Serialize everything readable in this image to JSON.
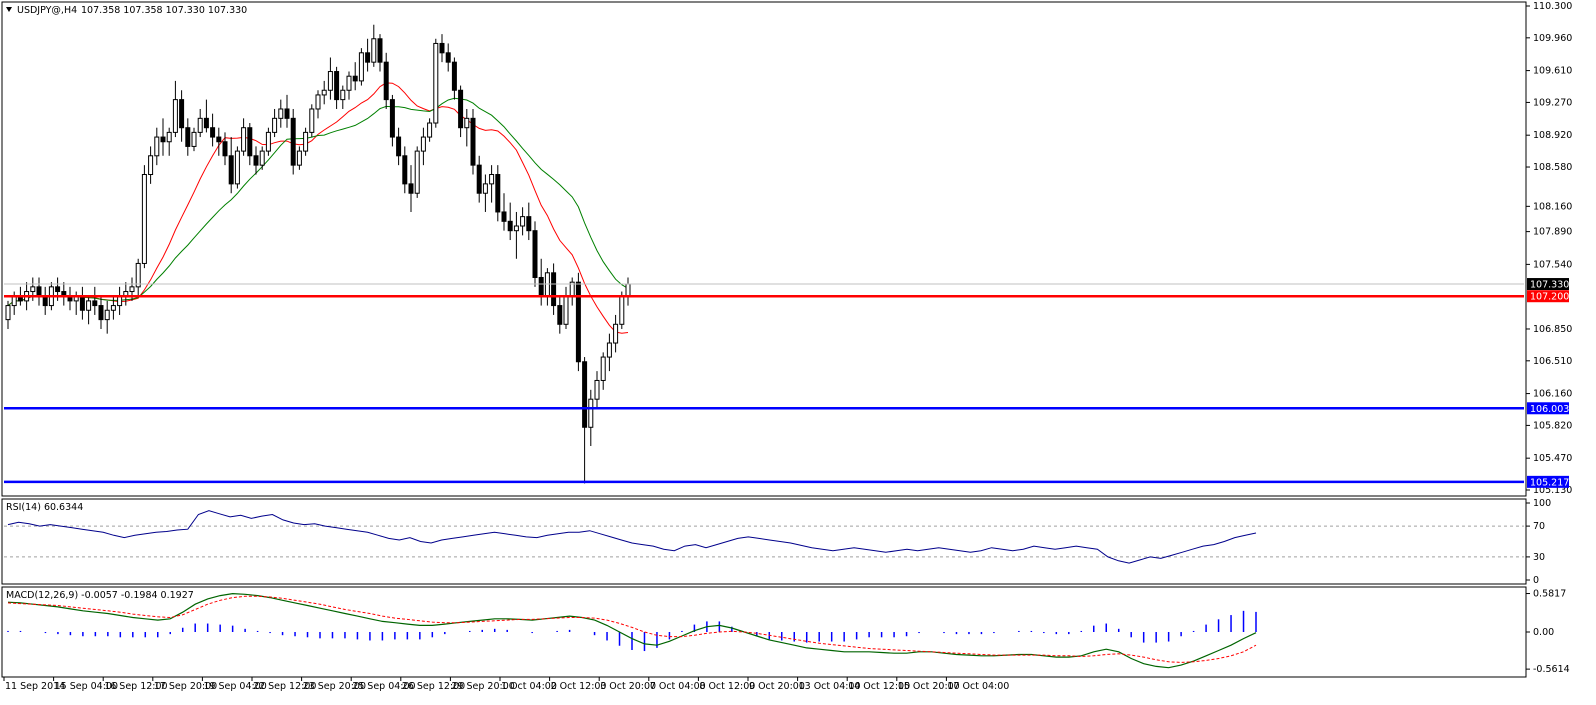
{
  "header": {
    "symbol_label": "USDJPY@,H4",
    "ohlc_label": "107.358 107.358 107.330 107.330"
  },
  "price_axis": {
    "ticks": [
      "110.300",
      "109.960",
      "109.610",
      "109.270",
      "108.920",
      "108.580",
      "108.160",
      "107.890",
      "107.540",
      "106.850",
      "106.510",
      "106.160",
      "105.820",
      "105.470",
      "105.130"
    ],
    "ylim": [
      105.13,
      110.3
    ]
  },
  "price_levels": [
    {
      "value": 107.33,
      "label": "107.330",
      "kind": "current",
      "color": "#c0c0c0",
      "badge_bg": "#000000"
    },
    {
      "value": 107.2,
      "label": "107.200",
      "kind": "resistance",
      "color": "#ff0000",
      "badge_bg": "#ff0000"
    },
    {
      "value": 106.003,
      "label": "106.003",
      "kind": "support",
      "color": "#0000ff",
      "badge_bg": "#0000ff"
    },
    {
      "value": 105.217,
      "label": "105.217",
      "kind": "support",
      "color": "#0000ff",
      "badge_bg": "#0000ff"
    }
  ],
  "rsi": {
    "label": "RSI(14) 60.6344",
    "ticks": [
      "100",
      "70",
      "30",
      "0"
    ],
    "levels": [
      70,
      30
    ],
    "ylim": [
      0,
      100
    ],
    "color": "#00008b",
    "values": [
      72,
      75,
      73,
      70,
      72,
      70,
      68,
      66,
      64,
      62,
      58,
      55,
      58,
      60,
      62,
      63,
      65,
      66,
      85,
      90,
      86,
      82,
      84,
      80,
      83,
      85,
      78,
      74,
      72,
      73,
      70,
      68,
      66,
      64,
      62,
      58,
      54,
      52,
      55,
      50,
      48,
      52,
      54,
      56,
      58,
      60,
      62,
      60,
      58,
      56,
      55,
      58,
      60,
      62,
      62,
      64,
      60,
      56,
      52,
      48,
      46,
      44,
      40,
      38,
      44,
      46,
      42,
      46,
      50,
      54,
      56,
      54,
      52,
      50,
      48,
      45,
      42,
      40,
      38,
      40,
      42,
      40,
      38,
      36,
      38,
      40,
      38,
      40,
      42,
      40,
      38,
      36,
      38,
      42,
      40,
      38,
      40,
      44,
      42,
      40,
      42,
      44,
      42,
      40,
      30,
      25,
      22,
      26,
      30,
      28,
      32,
      36,
      40,
      44,
      46,
      50,
      55,
      58,
      61
    ]
  },
  "macd": {
    "label": "MACD(12,26,9) -0.0057 -0.1984 0.1927",
    "ticks": [
      "0.5817",
      "0.00",
      "-0.5614"
    ],
    "ylim": [
      -0.62,
      0.62
    ],
    "line_color": "#006400",
    "signal_color": "#ff0000",
    "hist_color": "#0000ff",
    "macd_line": [
      0.45,
      0.44,
      0.42,
      0.4,
      0.38,
      0.35,
      0.32,
      0.3,
      0.28,
      0.25,
      0.22,
      0.2,
      0.18,
      0.2,
      0.3,
      0.42,
      0.5,
      0.55,
      0.58,
      0.57,
      0.55,
      0.52,
      0.48,
      0.44,
      0.4,
      0.36,
      0.32,
      0.28,
      0.24,
      0.2,
      0.16,
      0.14,
      0.12,
      0.1,
      0.1,
      0.12,
      0.14,
      0.16,
      0.18,
      0.2,
      0.2,
      0.19,
      0.18,
      0.2,
      0.22,
      0.24,
      0.22,
      0.18,
      0.1,
      0.0,
      -0.1,
      -0.18,
      -0.2,
      -0.14,
      -0.06,
      0.02,
      0.08,
      0.1,
      0.06,
      0.0,
      -0.06,
      -0.12,
      -0.16,
      -0.2,
      -0.24,
      -0.26,
      -0.28,
      -0.3,
      -0.3,
      -0.3,
      -0.31,
      -0.32,
      -0.32,
      -0.3,
      -0.3,
      -0.32,
      -0.34,
      -0.35,
      -0.36,
      -0.36,
      -0.35,
      -0.34,
      -0.34,
      -0.36,
      -0.38,
      -0.38,
      -0.36,
      -0.3,
      -0.26,
      -0.3,
      -0.4,
      -0.48,
      -0.52,
      -0.54,
      -0.5,
      -0.44,
      -0.36,
      -0.28,
      -0.2,
      -0.1,
      -0.01
    ],
    "signal_line": [
      0.44,
      0.43,
      0.42,
      0.41,
      0.4,
      0.38,
      0.36,
      0.34,
      0.32,
      0.3,
      0.27,
      0.25,
      0.23,
      0.22,
      0.26,
      0.34,
      0.42,
      0.48,
      0.52,
      0.54,
      0.54,
      0.53,
      0.51,
      0.48,
      0.45,
      0.42,
      0.38,
      0.34,
      0.31,
      0.28,
      0.24,
      0.21,
      0.19,
      0.17,
      0.15,
      0.14,
      0.14,
      0.15,
      0.16,
      0.17,
      0.18,
      0.19,
      0.19,
      0.2,
      0.21,
      0.22,
      0.22,
      0.21,
      0.18,
      0.13,
      0.07,
      0.0,
      -0.05,
      -0.07,
      -0.07,
      -0.05,
      -0.02,
      0.0,
      0.01,
      0.0,
      -0.02,
      -0.05,
      -0.08,
      -0.11,
      -0.14,
      -0.17,
      -0.19,
      -0.21,
      -0.23,
      -0.25,
      -0.26,
      -0.27,
      -0.28,
      -0.29,
      -0.3,
      -0.31,
      -0.32,
      -0.33,
      -0.34,
      -0.35,
      -0.35,
      -0.35,
      -0.35,
      -0.35,
      -0.36,
      -0.36,
      -0.37,
      -0.36,
      -0.34,
      -0.33,
      -0.35,
      -0.38,
      -0.42,
      -0.45,
      -0.46,
      -0.45,
      -0.43,
      -0.4,
      -0.36,
      -0.3,
      -0.2
    ]
  },
  "time_axis": {
    "labels": [
      "11 Sep 2014",
      "15 Sep 04:00",
      "16 Sep 12:00",
      "17 Sep 20:00",
      "19 Sep 04:00",
      "22 Sep 12:00",
      "23 Sep 20:00",
      "25 Sep 04:00",
      "26 Sep 12:00",
      "29 Sep 20:00",
      "1 Oct 04:00",
      "2 Oct 12:00",
      "3 Oct 20:00",
      "7 Oct 04:00",
      "8 Oct 12:00",
      "9 Oct 20:00",
      "13 Oct 04:00",
      "14 Oct 12:00",
      "15 Oct 20:00",
      "17 Oct 04:00"
    ],
    "bars_per_label": 8
  },
  "chart_data": {
    "type": "candlestick",
    "symbol": "USDJPY@",
    "timeframe": "H4",
    "ylim": [
      105.13,
      110.3
    ],
    "ohlc": [
      [
        106.95,
        107.15,
        106.85,
        107.1
      ],
      [
        107.1,
        107.25,
        107.0,
        107.2
      ],
      [
        107.2,
        107.3,
        107.1,
        107.15
      ],
      [
        107.15,
        107.35,
        107.05,
        107.25
      ],
      [
        107.25,
        107.4,
        107.15,
        107.3
      ],
      [
        107.3,
        107.4,
        107.1,
        107.2
      ],
      [
        107.2,
        107.3,
        107.0,
        107.1
      ],
      [
        107.1,
        107.35,
        107.05,
        107.3
      ],
      [
        107.3,
        107.4,
        107.15,
        107.25
      ],
      [
        107.25,
        107.35,
        107.1,
        107.2
      ],
      [
        107.2,
        107.3,
        107.05,
        107.15
      ],
      [
        107.15,
        107.25,
        107.0,
        107.2
      ],
      [
        107.2,
        107.3,
        106.95,
        107.05
      ],
      [
        107.05,
        107.2,
        106.9,
        107.15
      ],
      [
        107.15,
        107.3,
        107.0,
        107.1
      ],
      [
        107.1,
        107.2,
        106.85,
        106.95
      ],
      [
        106.95,
        107.15,
        106.8,
        107.05
      ],
      [
        107.05,
        107.2,
        106.95,
        107.1
      ],
      [
        107.1,
        107.3,
        107.0,
        107.2
      ],
      [
        107.2,
        107.35,
        107.1,
        107.25
      ],
      [
        107.25,
        107.4,
        107.15,
        107.3
      ],
      [
        107.3,
        107.6,
        107.2,
        107.55
      ],
      [
        107.55,
        108.6,
        107.5,
        108.5
      ],
      [
        108.5,
        108.8,
        108.4,
        108.7
      ],
      [
        108.7,
        109.0,
        108.6,
        108.9
      ],
      [
        108.9,
        109.1,
        108.7,
        108.85
      ],
      [
        108.85,
        109.0,
        108.7,
        108.95
      ],
      [
        108.95,
        109.5,
        108.9,
        109.3
      ],
      [
        109.3,
        109.4,
        108.85,
        109.0
      ],
      [
        109.0,
        109.1,
        108.7,
        108.8
      ],
      [
        108.8,
        109.0,
        108.75,
        108.95
      ],
      [
        108.95,
        109.2,
        108.9,
        109.1
      ],
      [
        109.1,
        109.3,
        108.95,
        109.0
      ],
      [
        109.0,
        109.15,
        108.8,
        108.9
      ],
      [
        108.9,
        109.0,
        108.7,
        108.85
      ],
      [
        108.85,
        108.95,
        108.6,
        108.7
      ],
      [
        108.7,
        108.9,
        108.3,
        108.4
      ],
      [
        108.4,
        108.8,
        108.35,
        108.75
      ],
      [
        108.75,
        109.1,
        108.7,
        109.0
      ],
      [
        109.0,
        109.05,
        108.6,
        108.7
      ],
      [
        108.7,
        108.8,
        108.5,
        108.6
      ],
      [
        108.6,
        108.8,
        108.55,
        108.75
      ],
      [
        108.75,
        109.0,
        108.7,
        108.95
      ],
      [
        108.95,
        109.2,
        108.9,
        109.1
      ],
      [
        109.1,
        109.3,
        109.0,
        109.2
      ],
      [
        109.2,
        109.35,
        109.0,
        109.1
      ],
      [
        109.1,
        109.2,
        108.5,
        108.6
      ],
      [
        108.6,
        108.8,
        108.55,
        108.75
      ],
      [
        108.75,
        109.0,
        108.7,
        108.95
      ],
      [
        108.95,
        109.25,
        108.9,
        109.2
      ],
      [
        109.2,
        109.4,
        109.1,
        109.35
      ],
      [
        109.35,
        109.5,
        109.25,
        109.4
      ],
      [
        109.4,
        109.75,
        109.3,
        109.6
      ],
      [
        109.6,
        109.65,
        109.2,
        109.3
      ],
      [
        109.3,
        109.45,
        109.2,
        109.4
      ],
      [
        109.4,
        109.6,
        109.3,
        109.55
      ],
      [
        109.55,
        109.7,
        109.4,
        109.5
      ],
      [
        109.5,
        109.85,
        109.45,
        109.8
      ],
      [
        109.8,
        109.95,
        109.6,
        109.7
      ],
      [
        109.7,
        110.1,
        109.65,
        109.95
      ],
      [
        109.95,
        110.0,
        109.6,
        109.7
      ],
      [
        109.7,
        109.8,
        109.2,
        109.3
      ],
      [
        109.3,
        109.35,
        108.8,
        108.9
      ],
      [
        108.9,
        109.0,
        108.6,
        108.7
      ],
      [
        108.7,
        108.8,
        108.3,
        108.4
      ],
      [
        108.4,
        108.6,
        108.1,
        108.3
      ],
      [
        108.3,
        108.8,
        108.25,
        108.75
      ],
      [
        108.75,
        109.0,
        108.6,
        108.9
      ],
      [
        108.9,
        109.1,
        108.85,
        109.05
      ],
      [
        109.05,
        109.95,
        109.0,
        109.9
      ],
      [
        109.9,
        110.0,
        109.7,
        109.8
      ],
      [
        109.8,
        109.9,
        109.6,
        109.7
      ],
      [
        109.7,
        109.75,
        109.3,
        109.4
      ],
      [
        109.4,
        109.45,
        108.9,
        109.0
      ],
      [
        109.0,
        109.2,
        108.8,
        109.1
      ],
      [
        109.1,
        109.2,
        108.5,
        108.6
      ],
      [
        108.6,
        108.7,
        108.2,
        108.3
      ],
      [
        108.3,
        108.5,
        108.1,
        108.4
      ],
      [
        108.4,
        108.6,
        108.2,
        108.5
      ],
      [
        108.5,
        108.6,
        108.0,
        108.1
      ],
      [
        108.1,
        108.3,
        107.9,
        108.0
      ],
      [
        108.0,
        108.2,
        107.8,
        107.9
      ],
      [
        107.9,
        108.1,
        107.6,
        107.95
      ],
      [
        107.95,
        108.15,
        107.85,
        108.05
      ],
      [
        108.05,
        108.2,
        107.8,
        107.9
      ],
      [
        107.9,
        108.0,
        107.3,
        107.4
      ],
      [
        107.4,
        107.6,
        107.1,
        107.2
      ],
      [
        107.2,
        107.5,
        107.1,
        107.45
      ],
      [
        107.45,
        107.55,
        107.0,
        107.1
      ],
      [
        107.1,
        107.2,
        106.8,
        106.9
      ],
      [
        106.9,
        107.3,
        106.85,
        107.2
      ],
      [
        107.2,
        107.4,
        107.1,
        107.35
      ],
      [
        107.35,
        107.45,
        106.4,
        106.5
      ],
      [
        106.5,
        106.55,
        105.2,
        105.8
      ],
      [
        105.8,
        106.2,
        105.6,
        106.1
      ],
      [
        106.1,
        106.4,
        106.0,
        106.3
      ],
      [
        106.3,
        106.6,
        106.2,
        106.55
      ],
      [
        106.55,
        106.8,
        106.4,
        106.7
      ],
      [
        106.7,
        107.0,
        106.6,
        106.9
      ],
      [
        106.9,
        107.25,
        106.85,
        107.2
      ],
      [
        107.2,
        107.4,
        107.1,
        107.33
      ]
    ]
  }
}
